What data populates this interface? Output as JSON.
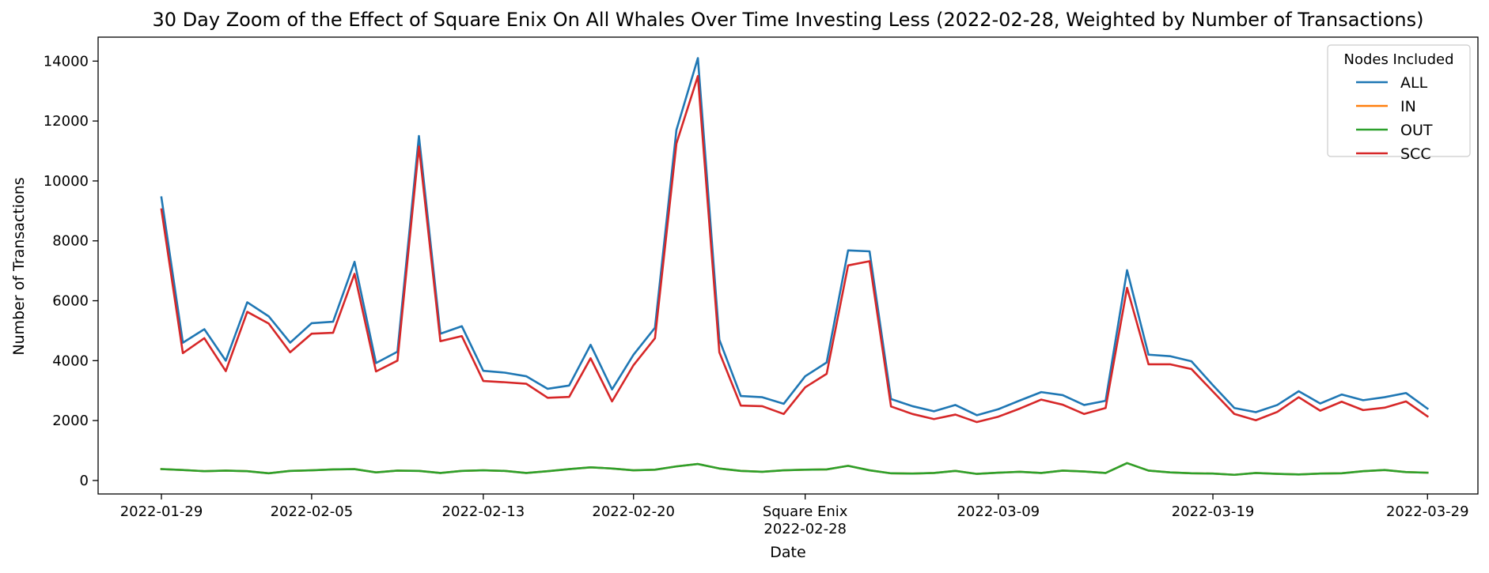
{
  "chart_data": {
    "type": "line",
    "title": "30 Day Zoom of the Effect of Square Enix On All Whales Over Time Investing Less (2022-02-28, Weighted by Number of Transactions)",
    "xlabel": "Date",
    "ylabel": "Number of Transactions",
    "ylim": [
      -450,
      14800
    ],
    "yticks": [
      0,
      2000,
      4000,
      6000,
      8000,
      10000,
      12000,
      14000
    ],
    "xlim": [
      "2022-01-26",
      "2022-04-01"
    ],
    "xticks": [
      {
        "date": "2022-01-29",
        "label": "2022-01-29"
      },
      {
        "date": "2022-02-05",
        "label": "2022-02-05"
      },
      {
        "date": "2022-02-13",
        "label": "2022-02-13"
      },
      {
        "date": "2022-02-20",
        "label": "2022-02-20"
      },
      {
        "date": "2022-02-28",
        "label": "Square Enix\n2022-02-28"
      },
      {
        "date": "2022-03-09",
        "label": "2022-03-09"
      },
      {
        "date": "2022-03-19",
        "label": "2022-03-19"
      },
      {
        "date": "2022-03-29",
        "label": "2022-03-29"
      }
    ],
    "legend": {
      "title": "Nodes Included",
      "placement": "top-right"
    },
    "grid": false,
    "start_date": "2022-01-29",
    "series": [
      {
        "name": "ALL",
        "color": "#1f77b4",
        "values": [
          9450,
          4600,
          5050,
          4000,
          5950,
          5480,
          4600,
          5250,
          5300,
          7300,
          3920,
          4300,
          11500,
          4900,
          5150,
          3660,
          3600,
          3480,
          3060,
          3170,
          4530,
          3040,
          4200,
          5100,
          11700,
          14100,
          4700,
          2820,
          2780,
          2560,
          3480,
          3940,
          7680,
          7650,
          2720,
          2480,
          2310,
          2520,
          2180,
          2380,
          2670,
          2950,
          2850,
          2520,
          2660,
          7020,
          4200,
          4150,
          3980,
          3180,
          2420,
          2280,
          2520,
          2980,
          2570,
          2870,
          2680,
          2780,
          2920,
          2400
        ]
      },
      {
        "name": "IN",
        "color": "#ff7f0e",
        "values": [
          380,
          350,
          310,
          330,
          310,
          240,
          320,
          340,
          370,
          380,
          270,
          330,
          320,
          250,
          320,
          340,
          320,
          250,
          310,
          380,
          440,
          400,
          340,
          360,
          470,
          550,
          400,
          320,
          290,
          340,
          360,
          370,
          490,
          340,
          240,
          230,
          250,
          320,
          220,
          260,
          290,
          250,
          330,
          300,
          250,
          580,
          330,
          270,
          240,
          230,
          190,
          250,
          220,
          200,
          230,
          240,
          310,
          350,
          280,
          260
        ]
      },
      {
        "name": "OUT",
        "color": "#2ca02c",
        "values": [
          380,
          350,
          310,
          330,
          310,
          240,
          320,
          340,
          370,
          380,
          270,
          330,
          320,
          250,
          320,
          340,
          320,
          250,
          310,
          380,
          440,
          400,
          340,
          360,
          470,
          550,
          400,
          320,
          290,
          340,
          360,
          370,
          490,
          340,
          240,
          230,
          250,
          320,
          220,
          260,
          290,
          250,
          330,
          300,
          250,
          580,
          330,
          270,
          240,
          230,
          190,
          250,
          220,
          200,
          230,
          240,
          310,
          350,
          280,
          260
        ]
      },
      {
        "name": "SCC",
        "color": "#d62728",
        "values": [
          9050,
          4250,
          4750,
          3650,
          5630,
          5240,
          4280,
          4900,
          4930,
          6900,
          3640,
          4000,
          11150,
          4650,
          4820,
          3320,
          3280,
          3230,
          2760,
          2790,
          4080,
          2640,
          3850,
          4750,
          11250,
          13500,
          4280,
          2500,
          2480,
          2220,
          3110,
          3560,
          7180,
          7320,
          2470,
          2220,
          2050,
          2200,
          1950,
          2130,
          2400,
          2700,
          2530,
          2220,
          2420,
          6430,
          3880,
          3880,
          3720,
          2970,
          2220,
          2010,
          2290,
          2780,
          2330,
          2630,
          2350,
          2430,
          2640,
          2140
        ]
      }
    ]
  }
}
